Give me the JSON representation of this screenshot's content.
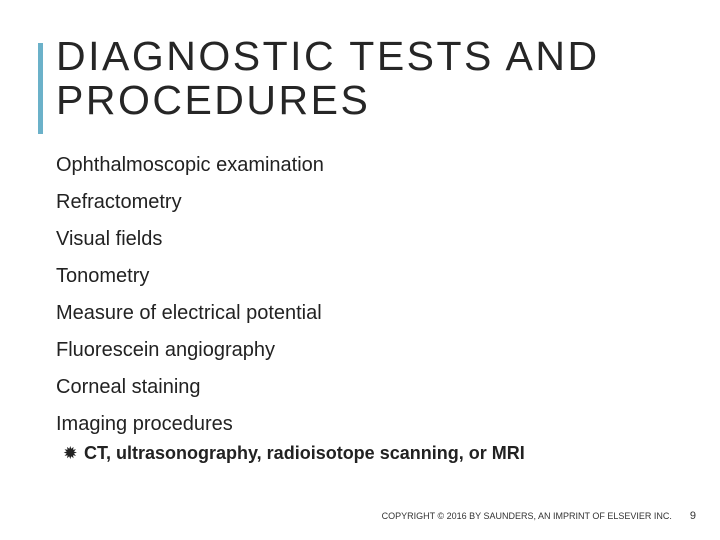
{
  "accent_color": "#6bb1c9",
  "background_color": "#ffffff",
  "title_color": "#262626",
  "text_color": "#222222",
  "title": "DIAGNOSTIC TESTS AND PROCEDURES",
  "title_fontsize": 41,
  "title_letter_spacing": 2.5,
  "list_fontsize": 20,
  "sublist_fontsize": 18,
  "items": [
    "Ophthalmoscopic examination",
    "Refractometry",
    "Visual fields",
    "Tonometry",
    "Measure of electrical potential",
    "Fluorescein angiography",
    "Corneal staining",
    "Imaging procedures"
  ],
  "sub_bullet_glyph": "✹",
  "sub_items": [
    "CT, ultrasonography, radioisotope scanning, or MRI"
  ],
  "copyright": "COPYRIGHT © 2016 BY SAUNDERS, AN IMPRINT OF ELSEVIER INC.",
  "page_number": "9"
}
